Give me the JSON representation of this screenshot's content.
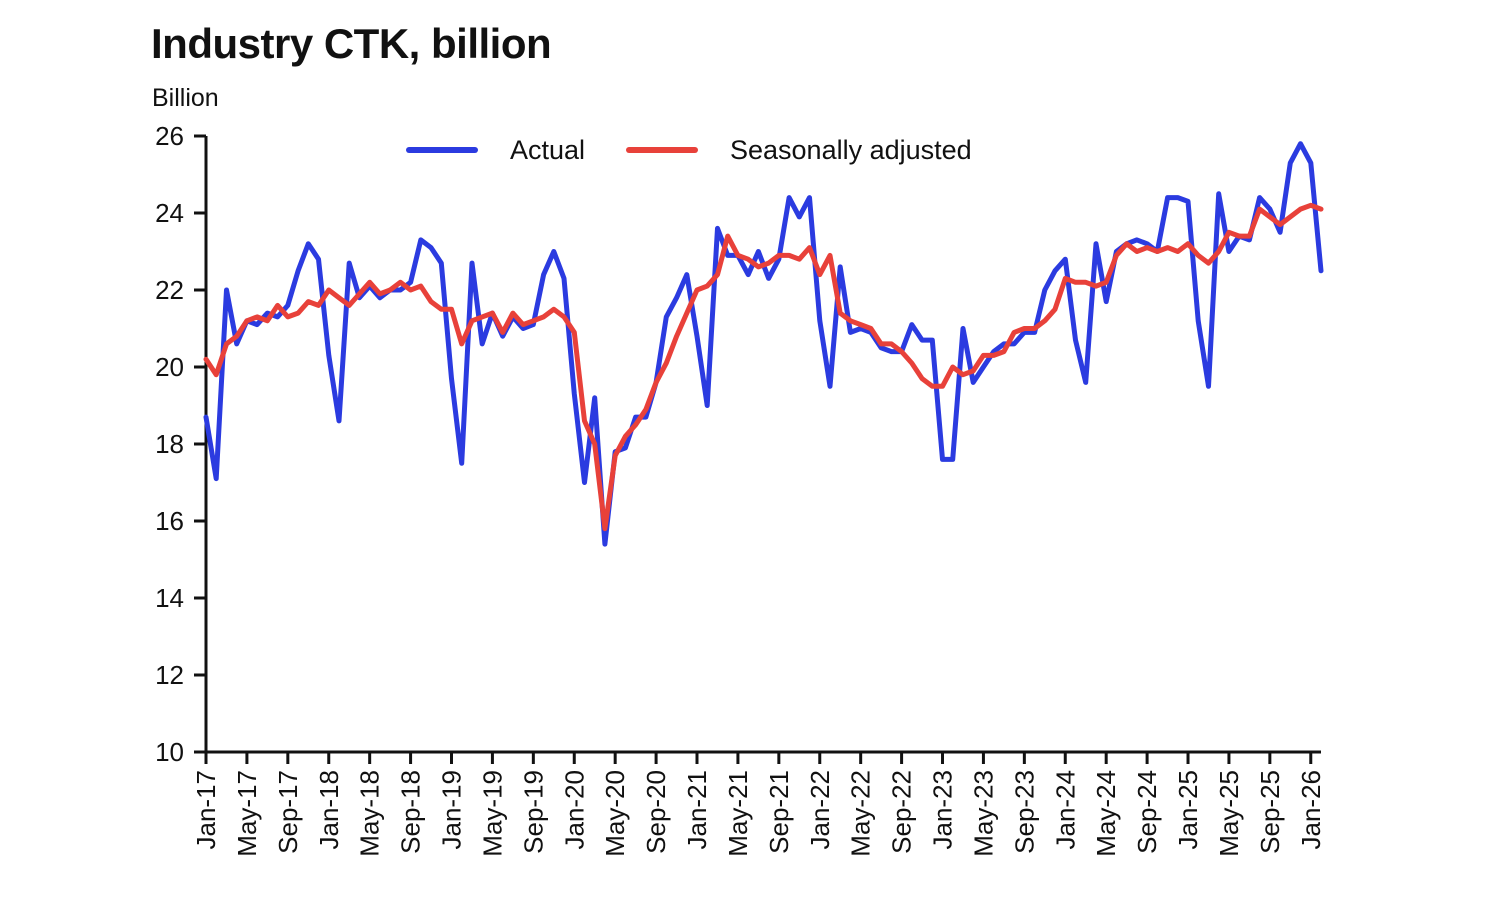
{
  "chart_data": {
    "type": "line",
    "title": "Industry CTK, billion",
    "ylabel": "Billion",
    "xlabel": "",
    "ylim": [
      10,
      26
    ],
    "yticks": [
      10,
      12,
      14,
      16,
      18,
      20,
      22,
      24,
      26
    ],
    "xticks": [
      "Jan-17",
      "May-17",
      "Sep-17",
      "Jan-18",
      "May-18",
      "Sep-18",
      "Jan-19",
      "May-19",
      "Sep-19",
      "Jan-20",
      "May-20",
      "Sep-20",
      "Jan-21",
      "May-21",
      "Sep-21",
      "Jan-22",
      "May-22",
      "Sep-22",
      "Jan-23",
      "May-23",
      "Sep-23",
      "Jan-24",
      "May-24",
      "Sep-24",
      "Jan-25",
      "May-25",
      "Sep-25",
      "Jan-26"
    ],
    "x_start": "Jan-17",
    "x_end": "Jan-26",
    "grid": false,
    "legend_position": "top",
    "series": [
      {
        "name": "Actual",
        "color": "#2b3be0",
        "values": [
          18.7,
          17.1,
          22.0,
          20.6,
          21.2,
          21.1,
          21.4,
          21.3,
          21.6,
          22.5,
          23.2,
          22.8,
          20.3,
          18.6,
          22.7,
          21.8,
          22.1,
          21.8,
          22.0,
          22.0,
          22.2,
          23.3,
          23.1,
          22.7,
          19.7,
          17.5,
          22.7,
          20.6,
          21.4,
          20.8,
          21.3,
          21.0,
          21.1,
          22.4,
          23.0,
          22.3,
          19.3,
          17.0,
          19.2,
          15.4,
          17.8,
          17.9,
          18.7,
          18.7,
          19.6,
          21.3,
          21.8,
          22.4,
          20.8,
          19.0,
          23.6,
          22.9,
          22.9,
          22.4,
          23.0,
          22.3,
          22.8,
          24.4,
          23.9,
          24.4,
          21.2,
          19.5,
          22.6,
          20.9,
          21.0,
          20.9,
          20.5,
          20.4,
          20.4,
          21.1,
          20.7,
          20.7,
          17.6,
          17.6,
          21.0,
          19.6,
          20.0,
          20.4,
          20.6,
          20.6,
          20.9,
          20.9,
          22.0,
          22.5,
          22.8,
          20.7,
          19.6,
          23.2,
          21.7,
          23.0,
          23.2,
          23.3,
          23.2,
          23.0,
          24.4,
          24.4,
          24.3,
          21.2,
          19.5,
          24.5,
          23.0,
          23.4,
          23.3,
          24.4,
          24.1,
          23.5,
          25.3,
          25.8,
          25.3,
          22.5
        ]
      },
      {
        "name": "Seasonally adjusted",
        "color": "#e8413a",
        "values": [
          20.2,
          19.8,
          20.6,
          20.8,
          21.2,
          21.3,
          21.2,
          21.6,
          21.3,
          21.4,
          21.7,
          21.6,
          22.0,
          21.8,
          21.6,
          21.9,
          22.2,
          21.9,
          22.0,
          22.2,
          22.0,
          22.1,
          21.7,
          21.5,
          21.5,
          20.6,
          21.2,
          21.3,
          21.4,
          20.9,
          21.4,
          21.1,
          21.2,
          21.3,
          21.5,
          21.3,
          20.9,
          18.6,
          18.0,
          15.8,
          17.7,
          18.2,
          18.5,
          18.9,
          19.6,
          20.1,
          20.8,
          21.4,
          22.0,
          22.1,
          22.4,
          23.4,
          22.9,
          22.8,
          22.6,
          22.7,
          22.9,
          22.9,
          22.8,
          23.1,
          22.4,
          22.9,
          21.4,
          21.2,
          21.1,
          21.0,
          20.6,
          20.6,
          20.4,
          20.1,
          19.7,
          19.5,
          19.5,
          20.0,
          19.8,
          19.9,
          20.3,
          20.3,
          20.4,
          20.9,
          21.0,
          21.0,
          21.2,
          21.5,
          22.3,
          22.2,
          22.2,
          22.1,
          22.2,
          22.9,
          23.2,
          23.0,
          23.1,
          23.0,
          23.1,
          23.0,
          23.2,
          22.9,
          22.7,
          23.0,
          23.5,
          23.4,
          23.4,
          24.1,
          23.9,
          23.7,
          23.9,
          24.1,
          24.2,
          24.1
        ]
      }
    ]
  }
}
